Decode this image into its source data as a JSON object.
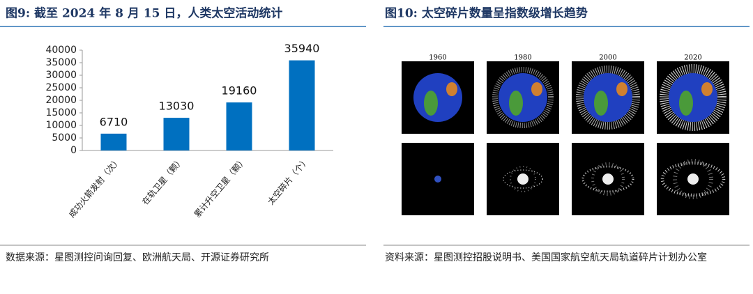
{
  "chart_data": {
    "type": "bar",
    "title": "图9: 截至 2024 年 8 月 15 日，人类太空活动统计",
    "categories": [
      "成功火箭发射（次）",
      "在轨卫星（颗）",
      "累计升空卫星（颗）",
      "太空碎片（个）"
    ],
    "values": [
      6710,
      13030,
      19160,
      35940
    ],
    "color": "#0070c0",
    "ylim": [
      0,
      40000
    ],
    "yticks": [
      0,
      5000,
      10000,
      15000,
      20000,
      25000,
      30000,
      35000,
      40000
    ],
    "grid": false,
    "source": "数据来源：星图测控问询回复、欧洲航天局、开源证券研究所"
  },
  "right_figure": {
    "title": "图10: 太空碎片数量呈指数级增长趋势",
    "year_labels": [
      "1960",
      "1980",
      "2000",
      "2020"
    ],
    "source": "资料来源：星图测控招股说明书、美国国家航空航天局轨道碎片计划办公室"
  }
}
